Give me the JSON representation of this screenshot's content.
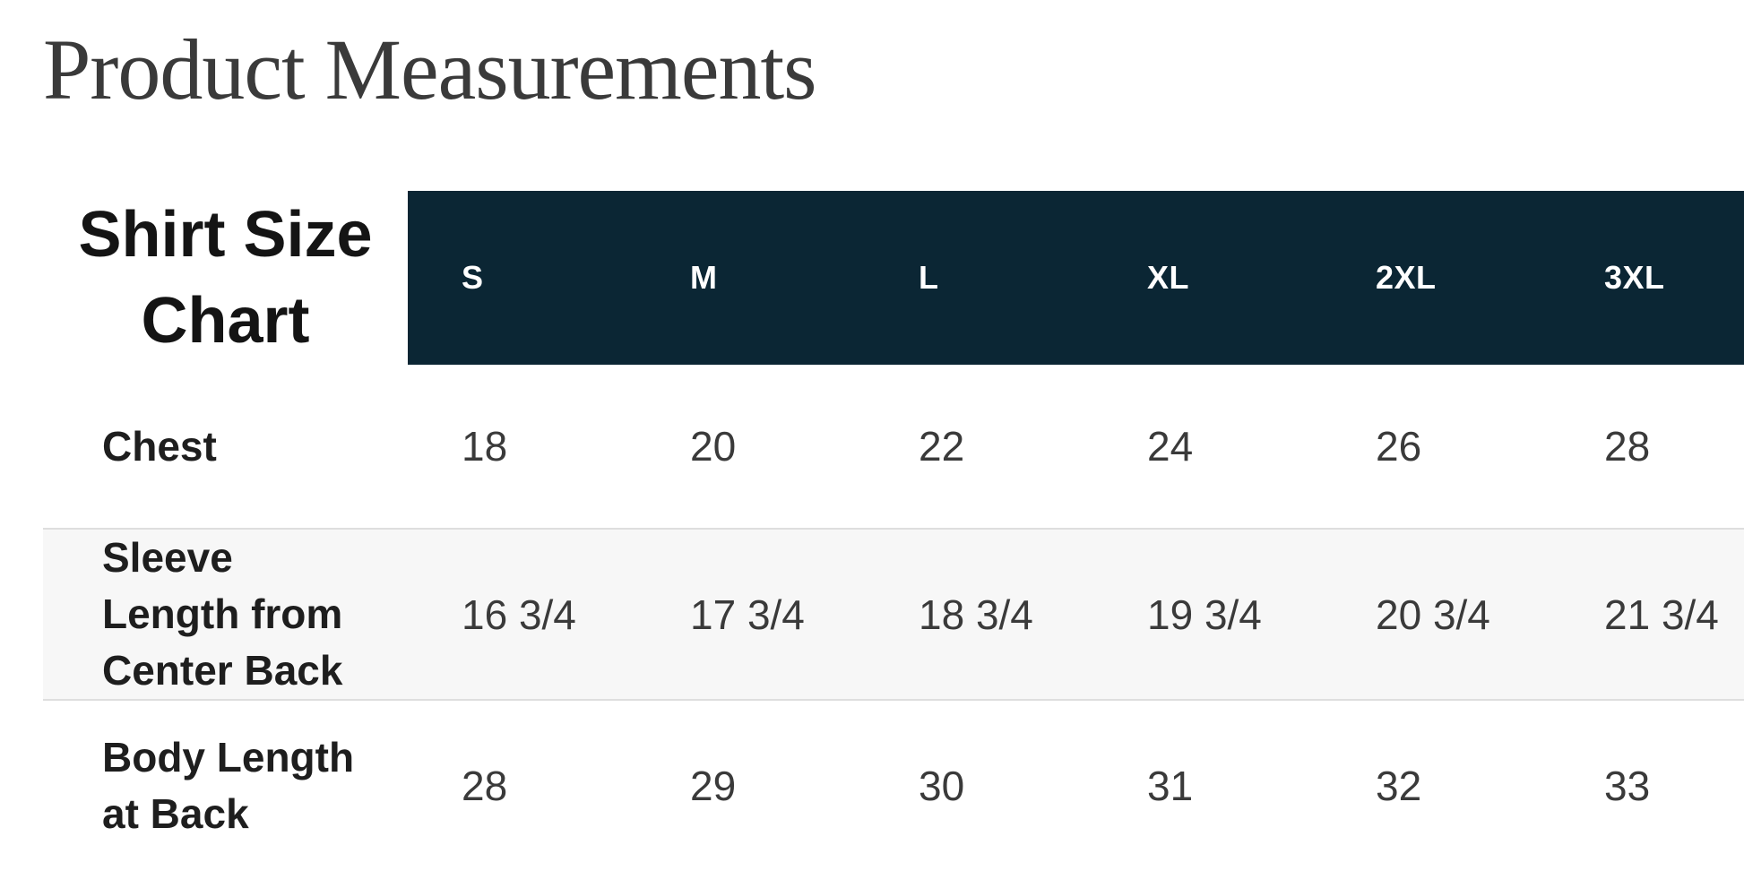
{
  "page": {
    "title": "Product Measurements"
  },
  "size_chart": {
    "corner_label": "Shirt Size Chart",
    "columns": [
      "S",
      "M",
      "L",
      "XL",
      "2XL",
      "3XL"
    ],
    "rows": [
      {
        "label": "Chest",
        "values": [
          "18",
          "20",
          "22",
          "24",
          "26",
          "28"
        ]
      },
      {
        "label": "Sleeve Length from Center Back",
        "values": [
          "16 3/4",
          "17 3/4",
          "18 3/4",
          "19 3/4",
          "20 3/4",
          "21 3/4"
        ]
      },
      {
        "label": "Body Length at Back",
        "values": [
          "28",
          "29",
          "30",
          "31",
          "32",
          "33"
        ]
      }
    ],
    "colors": {
      "header_bg": "#0b2634",
      "header_text": "#ffffff",
      "stripe_bg": "#f7f7f7",
      "row_border": "#dedede",
      "title_text": "#3a3a3a",
      "label_text": "#1e1e1e",
      "value_text": "#3a3a3a"
    }
  }
}
